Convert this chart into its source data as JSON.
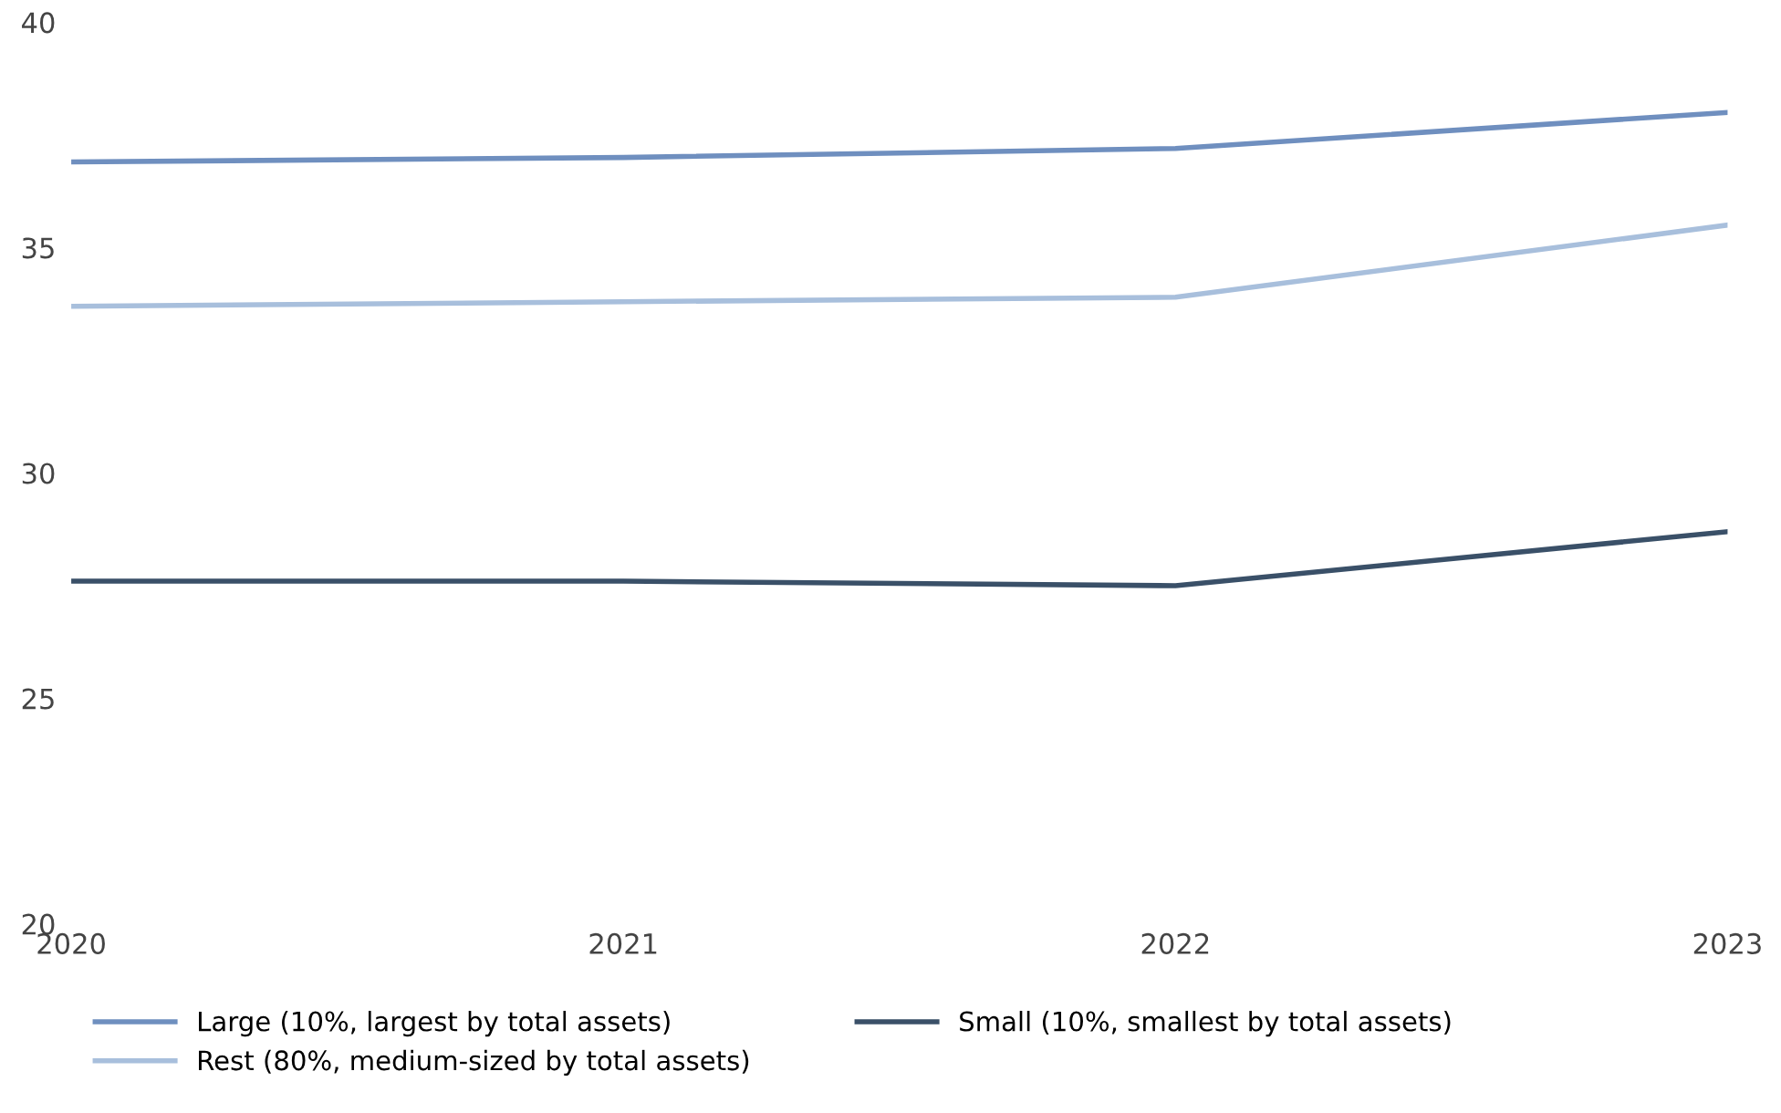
{
  "chart_data": {
    "type": "line",
    "x": [
      2020,
      2021,
      2022,
      2023
    ],
    "xlim": [
      2020,
      2023
    ],
    "xticks": [
      2020,
      2021,
      2022,
      2023
    ],
    "ylim": [
      20,
      40
    ],
    "yticks": [
      20,
      25,
      30,
      35,
      40
    ],
    "grid": false,
    "legend": "bottom",
    "marker": "none",
    "line_style": "solid",
    "series": [
      {
        "name": "Large (10%, largest by total assets)",
        "color": "#6f8fbf",
        "values": [
          36.9,
          37.0,
          37.2,
          38.0
        ]
      },
      {
        "name": "Rest (80%, medium-sized by total assets)",
        "color": "#a8bfdc",
        "values": [
          33.7,
          33.8,
          33.9,
          35.5
        ]
      },
      {
        "name": "Small (10%, smallest by total assets)",
        "color": "#3a5068",
        "values": [
          27.6,
          27.6,
          27.5,
          28.7
        ]
      }
    ]
  }
}
